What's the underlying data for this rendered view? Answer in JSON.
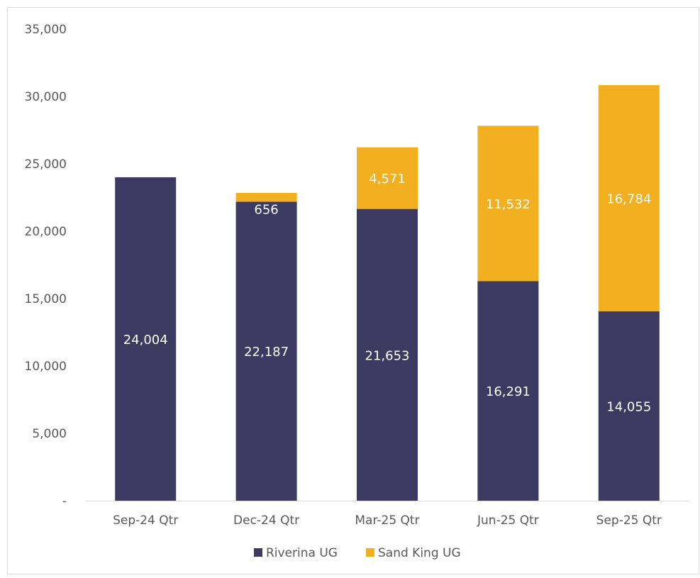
{
  "chart_data": {
    "type": "bar",
    "stacked": true,
    "categories": [
      "Sep-24 Qtr",
      "Dec-24 Qtr",
      "Mar-25 Qtr",
      "Jun-25 Qtr",
      "Sep-25 Qtr"
    ],
    "series": [
      {
        "name": "Riverina UG",
        "color": "#3d3a62",
        "values": [
          24004,
          22187,
          21653,
          16291,
          14055
        ]
      },
      {
        "name": "Sand King UG",
        "color": "#f2b020",
        "values": [
          0,
          656,
          4571,
          11532,
          16784
        ]
      }
    ],
    "data_labels": [
      [
        "24,004",
        "22,187",
        "21,653",
        "16,291",
        "14,055"
      ],
      [
        "",
        "656",
        "4,571",
        "11,532",
        "16,784"
      ]
    ],
    "ylim": [
      0,
      35000
    ],
    "y_ticks": [
      {
        "value": 0,
        "label": "-"
      },
      {
        "value": 5000,
        "label": "5,000"
      },
      {
        "value": 10000,
        "label": "10,000"
      },
      {
        "value": 15000,
        "label": "15,000"
      },
      {
        "value": 20000,
        "label": "20,000"
      },
      {
        "value": 25000,
        "label": "25,000"
      },
      {
        "value": 30000,
        "label": "30,000"
      },
      {
        "value": 35000,
        "label": "35,000"
      }
    ],
    "grid": false,
    "legend": "bottom",
    "title": "",
    "xlabel": "",
    "ylabel": ""
  }
}
